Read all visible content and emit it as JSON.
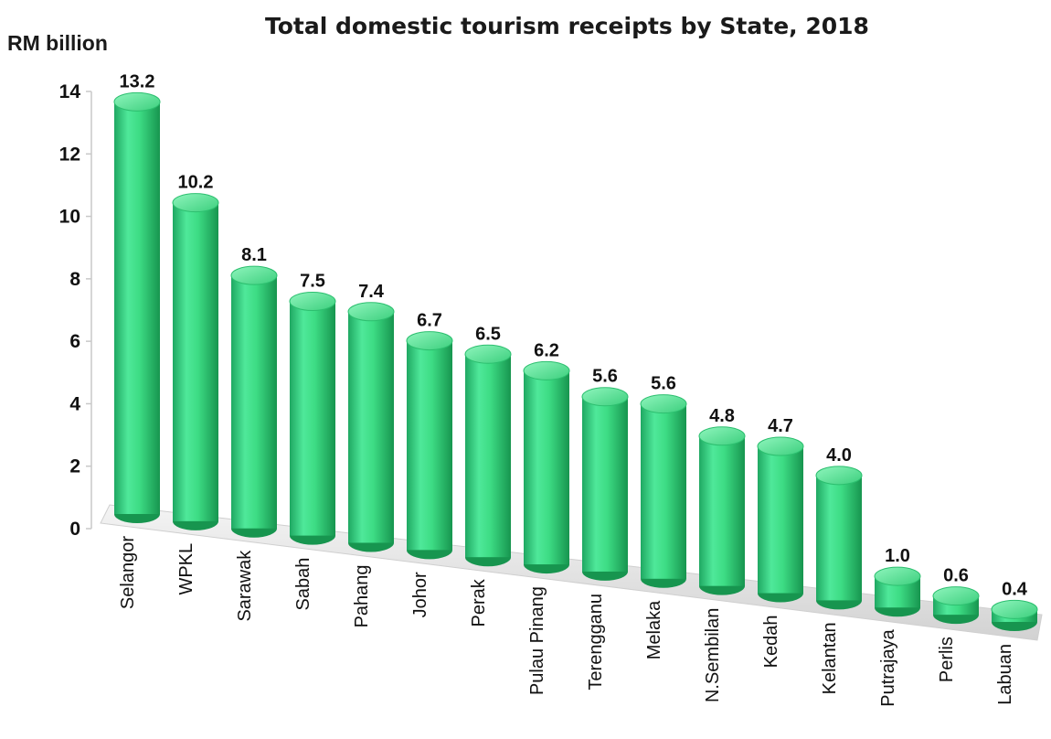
{
  "chart_data": {
    "type": "bar",
    "title": "Total domestic tourism receipts by State, 2018",
    "ylabel": "RM billion",
    "xlabel": "",
    "ylim": [
      0,
      14
    ],
    "yticks": [
      0,
      2,
      4,
      6,
      8,
      10,
      12,
      14
    ],
    "grid": false,
    "bar_color": "#3ddc84",
    "categories": [
      "Selangor",
      "WPKL",
      "Sarawak",
      "Sabah",
      "Pahang",
      "Johor",
      "Perak",
      "Pulau Pinang",
      "Terengganu",
      "Melaka",
      "N.Sembilan",
      "Kedah",
      "Kelantan",
      "Putrajaya",
      "Perlis",
      "Labuan"
    ],
    "values": [
      13.2,
      10.2,
      8.1,
      7.5,
      7.4,
      6.7,
      6.5,
      6.2,
      5.6,
      5.6,
      4.8,
      4.7,
      4.0,
      1.0,
      0.6,
      0.4
    ],
    "data_labels": [
      "13.2",
      "10.2",
      "8.1",
      "7.5",
      "7.4",
      "6.7",
      "6.5",
      "6.2",
      "5.6",
      "5.6",
      "4.8",
      "4.7",
      "4.0",
      "1.0",
      "0.6",
      "0.4"
    ]
  }
}
